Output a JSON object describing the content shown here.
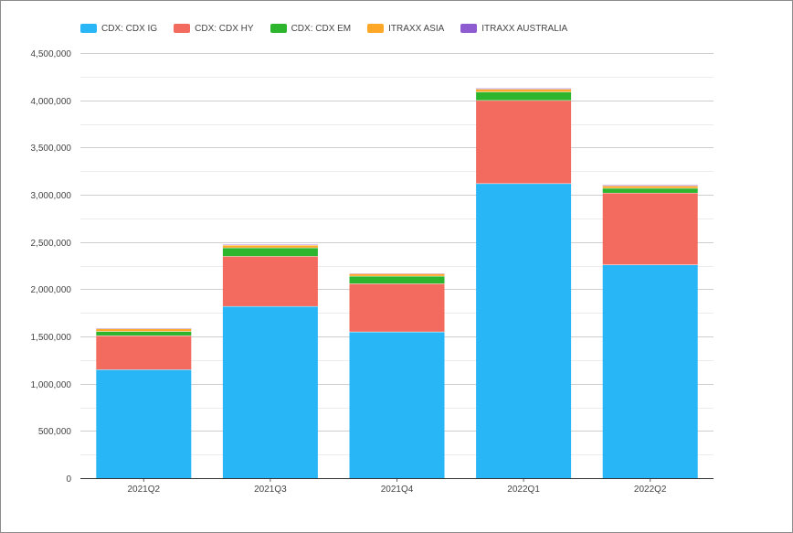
{
  "chart_data": {
    "type": "bar",
    "stacked": true,
    "categories": [
      "2021Q2",
      "2021Q3",
      "2021Q4",
      "2022Q1",
      "2022Q2"
    ],
    "series": [
      {
        "name": "CDX: CDX IG",
        "color": "#29b6f6",
        "values": [
          1150000,
          1820000,
          1550000,
          3120000,
          2260000
        ]
      },
      {
        "name": "CDX: CDX HY",
        "color": "#f26b5e",
        "values": [
          360000,
          530000,
          510000,
          880000,
          760000
        ]
      },
      {
        "name": "CDX: CDX EM",
        "color": "#2db52d",
        "values": [
          45000,
          90000,
          80000,
          90000,
          50000
        ]
      },
      {
        "name": "ITRAXX ASIA",
        "color": "#ffa726",
        "values": [
          28000,
          28000,
          25000,
          30000,
          25000
        ]
      },
      {
        "name": "ITRAXX AUSTRALIA",
        "color": "#8e5bd1",
        "values": [
          8000,
          8000,
          8000,
          10000,
          10000
        ]
      }
    ],
    "ylim": [
      0,
      4500000
    ],
    "yticks": [
      "0",
      "500,000",
      "1,000,000",
      "1,500,000",
      "2,000,000",
      "2,500,000",
      "3,000,000",
      "3,500,000",
      "4,000,000",
      "4,500,000"
    ],
    "ytick_values": [
      0,
      500000,
      1000000,
      1500000,
      2000000,
      2500000,
      3000000,
      3500000,
      4000000,
      4500000
    ],
    "grid": true,
    "legend_position": "top-left"
  }
}
